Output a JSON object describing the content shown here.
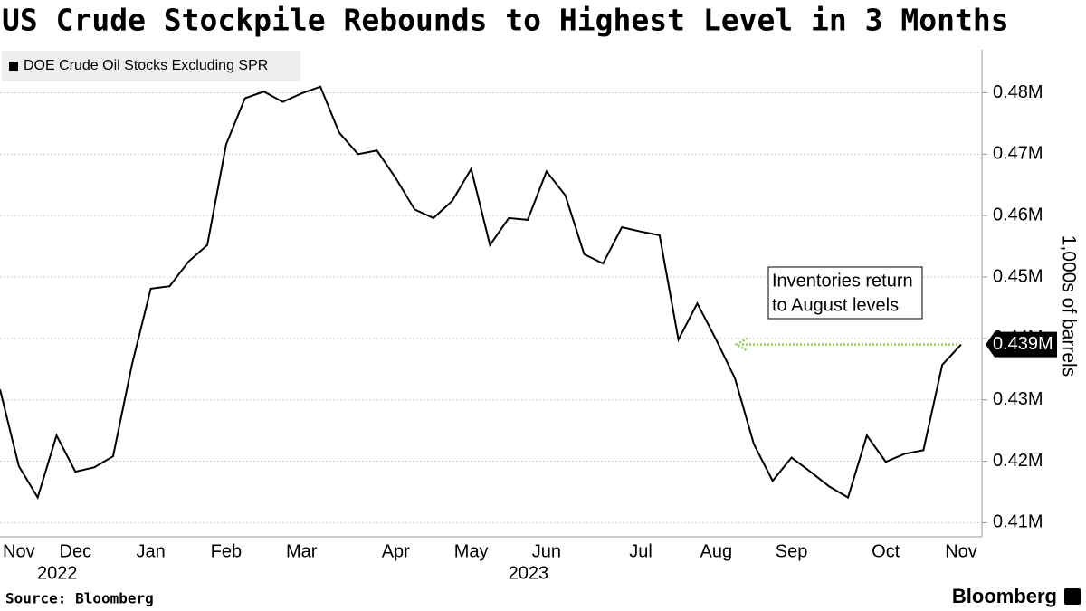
{
  "chart_data": {
    "type": "line",
    "title": "US Crude Stockpile Rebounds to Highest Level in 3 Months",
    "source": "Source: Bloomberg",
    "brand": "Bloomberg",
    "y_axis_label": "1,000s of barrels",
    "categories": [
      null,
      "Nov",
      null,
      null,
      "Dec",
      null,
      null,
      null,
      "Jan",
      null,
      null,
      null,
      "Feb",
      null,
      null,
      null,
      "Mar",
      null,
      null,
      null,
      null,
      "Apr",
      null,
      null,
      null,
      "May",
      null,
      null,
      null,
      "Jun",
      null,
      null,
      null,
      null,
      "Jul",
      null,
      null,
      null,
      "Aug",
      null,
      null,
      null,
      "Sep",
      null,
      null,
      null,
      null,
      "Oct",
      null,
      null,
      null,
      "Nov"
    ],
    "year_labels": [
      null,
      null,
      null,
      null,
      "2022",
      null,
      null,
      null,
      null,
      null,
      null,
      null,
      null,
      null,
      null,
      null,
      null,
      null,
      null,
      null,
      null,
      null,
      null,
      null,
      null,
      null,
      null,
      null,
      null,
      "2023",
      null,
      null,
      null,
      null,
      null,
      null,
      null,
      null,
      null,
      null,
      null,
      null,
      null,
      null,
      null,
      null,
      null,
      null,
      null,
      null,
      null,
      null
    ],
    "series": [
      {
        "name": "DOE Crude Oil Stocks Excluding SPR",
        "color": "#000000",
        "values": [
          0.4317,
          0.4192,
          0.4141,
          0.4242,
          0.4183,
          0.419,
          0.4208,
          0.4357,
          0.4481,
          0.4485,
          0.4525,
          0.4552,
          0.4716,
          0.4791,
          0.4802,
          0.4785,
          0.4799,
          0.481,
          0.4735,
          0.47,
          0.4706,
          0.4661,
          0.461,
          0.4596,
          0.4624,
          0.4676,
          0.4552,
          0.4596,
          0.4593,
          0.4672,
          0.4633,
          0.4537,
          0.4522,
          0.4581,
          0.4574,
          0.4568,
          0.4398,
          0.4457,
          0.4398,
          0.4335,
          0.4228,
          0.4168,
          0.4206,
          0.4183,
          0.4159,
          0.4141,
          0.4242,
          0.4199,
          0.4212,
          0.4218,
          0.4357,
          0.439
        ],
        "value_labels": [
          null,
          null,
          null,
          null,
          null,
          null,
          null,
          null,
          null,
          null,
          null,
          null,
          null,
          null,
          null,
          null,
          null,
          null,
          null,
          null,
          null,
          null,
          null,
          null,
          null,
          null,
          null,
          null,
          null,
          null,
          null,
          null,
          null,
          null,
          null,
          null,
          null,
          null,
          null,
          null,
          null,
          null,
          null,
          null,
          null,
          null,
          null,
          null,
          null,
          null,
          null,
          "0.439M"
        ]
      }
    ],
    "ylim": [
      0.4077,
      0.487
    ],
    "yticks": [
      {
        "value": 0.41,
        "label": "0.41M"
      },
      {
        "value": 0.42,
        "label": "0.42M"
      },
      {
        "value": 0.43,
        "label": "0.43M"
      },
      {
        "value": 0.44,
        "label": "0.44M"
      },
      {
        "value": 0.45,
        "label": "0.45M"
      },
      {
        "value": 0.46,
        "label": "0.46M"
      },
      {
        "value": 0.47,
        "label": "0.47M"
      },
      {
        "value": 0.48,
        "label": "0.48M"
      }
    ],
    "grid": true,
    "legend": "top-left",
    "annotation": {
      "lines": [
        "Inventories return",
        "to August levels"
      ],
      "arrow_color": "#8fd14f"
    }
  }
}
